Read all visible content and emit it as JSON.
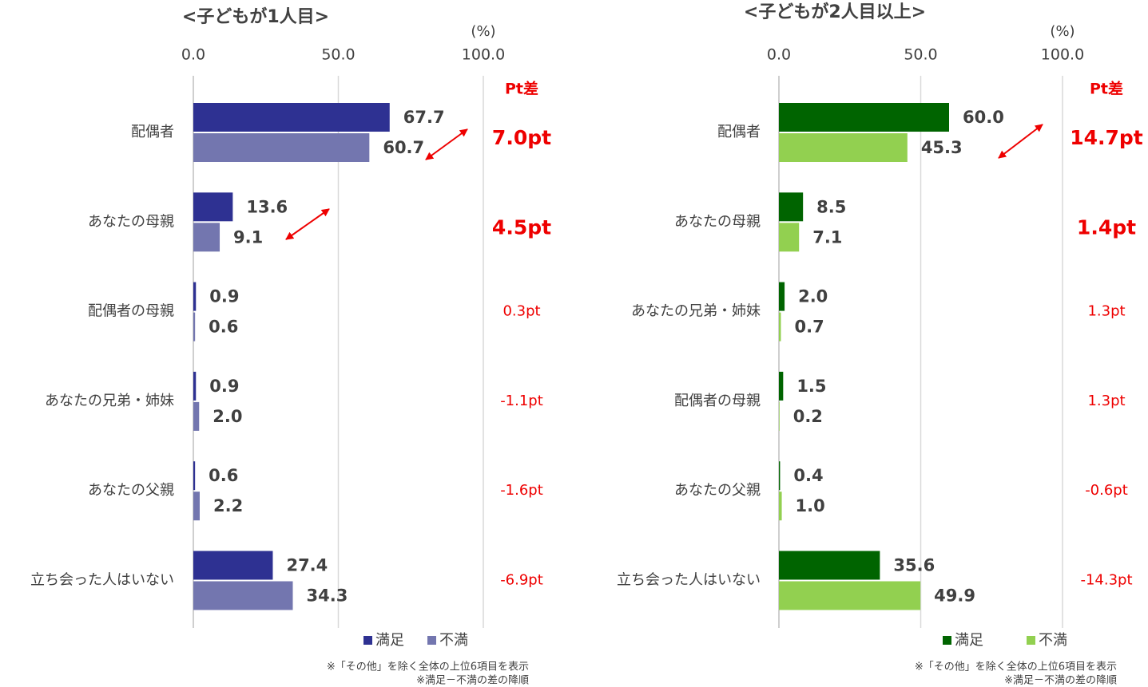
{
  "chart_data": [
    {
      "type": "bar",
      "title": "<子どもが1人目>",
      "unit": "(%)",
      "xlim": [
        0,
        100
      ],
      "xticks": [
        {
          "value": 0,
          "label": "0.0"
        },
        {
          "value": 50,
          "label": "50.0"
        },
        {
          "value": 100,
          "label": "100.0"
        }
      ],
      "grid": true,
      "categories": [
        "配偶者",
        "あなたの母親",
        "配偶者の母親",
        "あなたの兄弟・姉妹",
        "あなたの父親",
        "立ち会った人はいない"
      ],
      "series": [
        {
          "name": "満足",
          "color": "#2e3192",
          "values": [
            67.7,
            13.6,
            0.9,
            0.9,
            0.6,
            27.4
          ],
          "value_labels": [
            "67.7",
            "13.6",
            "0.9",
            "0.9",
            "0.6",
            "27.4"
          ]
        },
        {
          "name": "不満",
          "color": "#7376af",
          "values": [
            60.7,
            9.1,
            0.6,
            2.0,
            2.2,
            34.3
          ],
          "value_labels": [
            "60.7",
            "9.1",
            "0.6",
            "2.0",
            "2.2",
            "34.3"
          ]
        }
      ],
      "pt_diff": {
        "header": "Pt差",
        "values": [
          7.0,
          4.5,
          0.3,
          -1.1,
          -1.6,
          -6.9
        ],
        "value_labels": [
          "7.0pt",
          "4.5pt",
          "0.3pt",
          "-1.1pt",
          "-1.6pt",
          "-6.9pt"
        ],
        "highlight": [
          true,
          true,
          false,
          false,
          false,
          false
        ]
      },
      "notes": [
        "※「その他」を除く全体の上位6項目を表示",
        "※満足－不満の差の降順"
      ]
    },
    {
      "type": "bar",
      "title": "<子どもが2人目以上>",
      "unit": "(%)",
      "xlim": [
        0,
        100
      ],
      "xticks": [
        {
          "value": 0,
          "label": "0.0"
        },
        {
          "value": 50,
          "label": "50.0"
        },
        {
          "value": 100,
          "label": "100.0"
        }
      ],
      "grid": true,
      "categories": [
        "配偶者",
        "あなたの母親",
        "あなたの兄弟・姉妹",
        "配偶者の母親",
        "あなたの父親",
        "立ち会った人はいない"
      ],
      "series": [
        {
          "name": "満足",
          "color": "#006400",
          "values": [
            60.0,
            8.5,
            2.0,
            1.5,
            0.4,
            35.6
          ],
          "value_labels": [
            "60.0",
            "8.5",
            "2.0",
            "1.5",
            "0.4",
            "35.6"
          ]
        },
        {
          "name": "不満",
          "color": "#92d050",
          "values": [
            45.3,
            7.1,
            0.7,
            0.2,
            1.0,
            49.9
          ],
          "value_labels": [
            "45.3",
            "7.1",
            "0.7",
            "0.2",
            "1.0",
            "49.9"
          ]
        }
      ],
      "pt_diff": {
        "header": "Pt差",
        "values": [
          14.7,
          1.4,
          1.3,
          1.3,
          -0.6,
          -14.3
        ],
        "value_labels": [
          "14.7pt",
          "1.4pt",
          "1.3pt",
          "1.3pt",
          "-0.6pt",
          "-14.3pt"
        ],
        "highlight": [
          true,
          true,
          false,
          false,
          false,
          false
        ]
      },
      "notes": [
        "※「その他」を除く全体の上位6項目を表示",
        "※満足－不満の差の降順"
      ]
    }
  ]
}
